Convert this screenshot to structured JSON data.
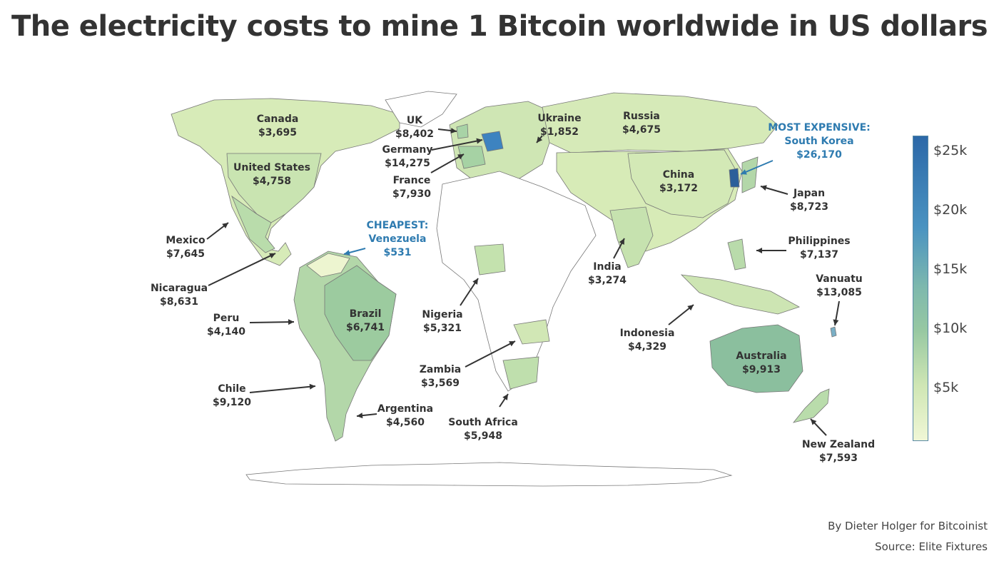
{
  "title": "The electricity costs to mine 1 Bitcoin worldwide in US dollars",
  "colors": {
    "scale_low": "#eef5d3",
    "scale_mid": "#8cc0a0",
    "scale_high": "#2c6fb0",
    "label_text": "#333333",
    "highlight": "#2e7bb0",
    "no_data": "#ffffff"
  },
  "chart_data": {
    "type": "choropleth",
    "unit": "US dollars",
    "colorbar": {
      "range": [
        531,
        26170
      ],
      "ticks": [
        {
          "value": 25000,
          "label": "$25k"
        },
        {
          "value": 20000,
          "label": "$20k"
        },
        {
          "value": 15000,
          "label": "$15k"
        },
        {
          "value": 10000,
          "label": "$10k"
        },
        {
          "value": 5000,
          "label": "$5k"
        }
      ]
    },
    "highlights": {
      "most_expensive": {
        "heading": "MOST EXPENSIVE:",
        "country": "South Korea",
        "value": "$26,170"
      },
      "cheapest": {
        "heading": "CHEAPEST:",
        "country": "Venezuela",
        "value": "$531"
      }
    },
    "countries": [
      {
        "name": "Canada",
        "value": 3695,
        "value_label": "$3,695"
      },
      {
        "name": "United States",
        "value": 4758,
        "value_label": "$4,758"
      },
      {
        "name": "Mexico",
        "value": 7645,
        "value_label": "$7,645"
      },
      {
        "name": "Nicaragua",
        "value": 8631,
        "value_label": "$8,631"
      },
      {
        "name": "Peru",
        "value": 4140,
        "value_label": "$4,140"
      },
      {
        "name": "Brazil",
        "value": 6741,
        "value_label": "$6,741"
      },
      {
        "name": "Chile",
        "value": 9120,
        "value_label": "$9,120"
      },
      {
        "name": "Argentina",
        "value": 4560,
        "value_label": "$4,560"
      },
      {
        "name": "UK",
        "value": 8402,
        "value_label": "$8,402"
      },
      {
        "name": "Germany",
        "value": 14275,
        "value_label": "$14,275"
      },
      {
        "name": "France",
        "value": 7930,
        "value_label": "$7,930"
      },
      {
        "name": "Ukraine",
        "value": 1852,
        "value_label": "$1,852"
      },
      {
        "name": "Russia",
        "value": 4675,
        "value_label": "$4,675"
      },
      {
        "name": "China",
        "value": 3172,
        "value_label": "$3,172"
      },
      {
        "name": "Japan",
        "value": 8723,
        "value_label": "$8,723"
      },
      {
        "name": "Philippines",
        "value": 7137,
        "value_label": "$7,137"
      },
      {
        "name": "India",
        "value": 3274,
        "value_label": "$3,274"
      },
      {
        "name": "Vanuatu",
        "value": 13085,
        "value_label": "$13,085"
      },
      {
        "name": "Indonesia",
        "value": 4329,
        "value_label": "$4,329"
      },
      {
        "name": "Australia",
        "value": 9913,
        "value_label": "$9,913"
      },
      {
        "name": "New Zealand",
        "value": 7593,
        "value_label": "$7,593"
      },
      {
        "name": "Nigeria",
        "value": 5321,
        "value_label": "$5,321"
      },
      {
        "name": "Zambia",
        "value": 3569,
        "value_label": "$3,569"
      },
      {
        "name": "South Africa",
        "value": 5948,
        "value_label": "$5,948"
      },
      {
        "name": "South Korea",
        "value": 26170,
        "value_label": "$26,170"
      },
      {
        "name": "Venezuela",
        "value": 531,
        "value_label": "$531"
      }
    ]
  },
  "credits": {
    "byline": "By Dieter Holger for Bitcoinist",
    "source": "Source: Elite Fixtures"
  }
}
